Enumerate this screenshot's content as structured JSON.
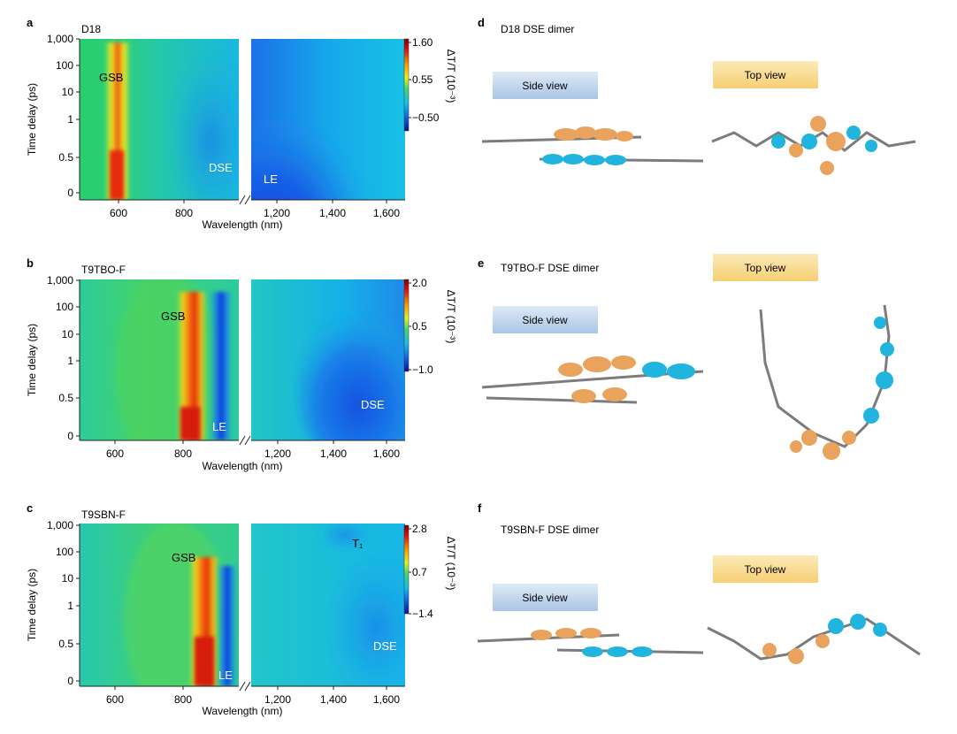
{
  "panels": [
    {
      "letter": "a",
      "name": "D18",
      "xlabel": "Wavelength (nm)",
      "ylabel": "Time delay (ps)",
      "x_ticks": [
        "600",
        "800",
        "1,200",
        "1,400",
        "1,600"
      ],
      "y_ticks": [
        "1,000",
        "100",
        "10",
        "1",
        "0.5",
        "0"
      ],
      "colorbar_ticks": [
        "1.60",
        "0.55",
        "−0.50"
      ],
      "colorbar_label": "ΔT/T (10⁻³)",
      "annotations": [
        "GSB",
        "DSE",
        "LE"
      ]
    },
    {
      "letter": "b",
      "name": "T9TBO-F",
      "xlabel": "Wavelength (nm)",
      "ylabel": "Time delay (ps)",
      "x_ticks": [
        "600",
        "800",
        "1,200",
        "1,400",
        "1,600"
      ],
      "y_ticks": [
        "1,000",
        "100",
        "10",
        "1",
        "0.5",
        "0"
      ],
      "colorbar_ticks": [
        "2.0",
        "0.5",
        "−1.0"
      ],
      "colorbar_label": "ΔT/T (10⁻³)",
      "annotations": [
        "GSB",
        "LE",
        "DSE"
      ]
    },
    {
      "letter": "c",
      "name": "T9SBN-F",
      "xlabel": "Wavelength (nm)",
      "ylabel": "Time delay (ps)",
      "x_ticks": [
        "600",
        "800",
        "1,200",
        "1,400",
        "1,600"
      ],
      "y_ticks": [
        "1,000",
        "100",
        "10",
        "1",
        "0.5",
        "0"
      ],
      "colorbar_ticks": [
        "2.8",
        "0.7",
        "−1.4"
      ],
      "colorbar_label": "ΔT/T (10⁻³)",
      "annotations": [
        "GSB",
        "LE",
        "T₁",
        "DSE"
      ]
    }
  ],
  "structures": [
    {
      "letter": "d",
      "title": "D18 DSE dimer",
      "side_label": "Side view",
      "top_label": "Top view"
    },
    {
      "letter": "e",
      "title": "T9TBO-F DSE dimer",
      "side_label": "Side view",
      "top_label": "Top view"
    },
    {
      "letter": "f",
      "title": "T9SBN-F DSE dimer",
      "side_label": "Side view",
      "top_label": "Top view"
    }
  ],
  "colors": {
    "background_green": "#35d07f",
    "light_blue": "#17b6ea",
    "deep_blue": "#0a4fd9",
    "orange_red": "#f25c18",
    "lobe_orange": "#e8a35a",
    "lobe_cyan": "#20b8e0"
  }
}
